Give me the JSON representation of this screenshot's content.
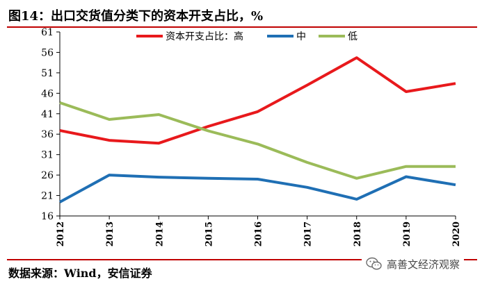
{
  "header": {
    "title": "图14：出口交货值分类下的资本开支占比，%"
  },
  "footer": {
    "source": "数据来源：Wind，安信证券",
    "watermark_text": "高善文经济观察",
    "watermark_icon": "wechat-logo-icon"
  },
  "chart_data": {
    "type": "line",
    "title": "",
    "xlabel": "",
    "ylabel": "",
    "categories": [
      "2012",
      "2013",
      "2014",
      "2015",
      "2016",
      "2017",
      "2018",
      "2019",
      "2020"
    ],
    "ylim": [
      16,
      61
    ],
    "yticks": [
      "16",
      "21",
      "26",
      "31",
      "36",
      "41",
      "46",
      "51",
      "56",
      "61"
    ],
    "grid": false,
    "legend_position": "top",
    "series": [
      {
        "name": "资本开支占比：高",
        "color": "#e8191c",
        "values": [
          36.9,
          34.5,
          33.8,
          37.9,
          41.5,
          48.0,
          54.7,
          46.4,
          48.4
        ]
      },
      {
        "name": "中",
        "color": "#1f6fb4",
        "values": [
          19.4,
          26.0,
          25.5,
          25.2,
          25.0,
          23.0,
          20.1,
          25.6,
          23.6
        ]
      },
      {
        "name": "低",
        "color": "#9bbb59",
        "values": [
          43.7,
          39.6,
          40.8,
          36.8,
          33.6,
          29.1,
          25.2,
          28.1,
          28.1
        ]
      }
    ]
  }
}
